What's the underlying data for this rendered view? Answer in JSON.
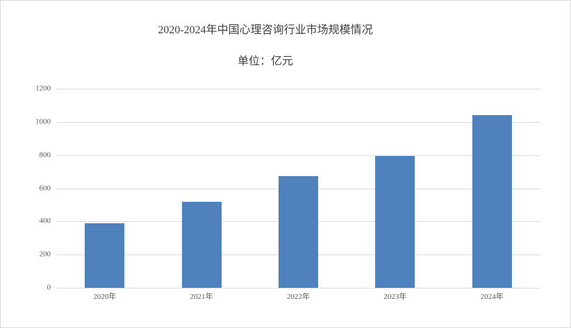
{
  "window": {
    "background_color": "#ffffff",
    "border_color": "#d9d9d9"
  },
  "chart_data": {
    "type": "bar",
    "title": "2020-2024年中国心理咨询行业市场规模情况",
    "subtitle": "单位：亿元",
    "unit": "亿元",
    "categories": [
      "2020年",
      "2021年",
      "2022年",
      "2023年",
      "2024年"
    ],
    "values": [
      390,
      520,
      675,
      795,
      1040
    ],
    "xlabel": "",
    "ylabel": "",
    "ylim": [
      0,
      1200
    ],
    "yticks": [
      0,
      200,
      400,
      600,
      800,
      1000,
      1200
    ],
    "grid": true,
    "legend_position": "none",
    "bar_color": "#4f81bd",
    "gridline_color": "#d9d9d9",
    "title_color": "#3f3f3f",
    "tick_label_color": "#595959"
  }
}
